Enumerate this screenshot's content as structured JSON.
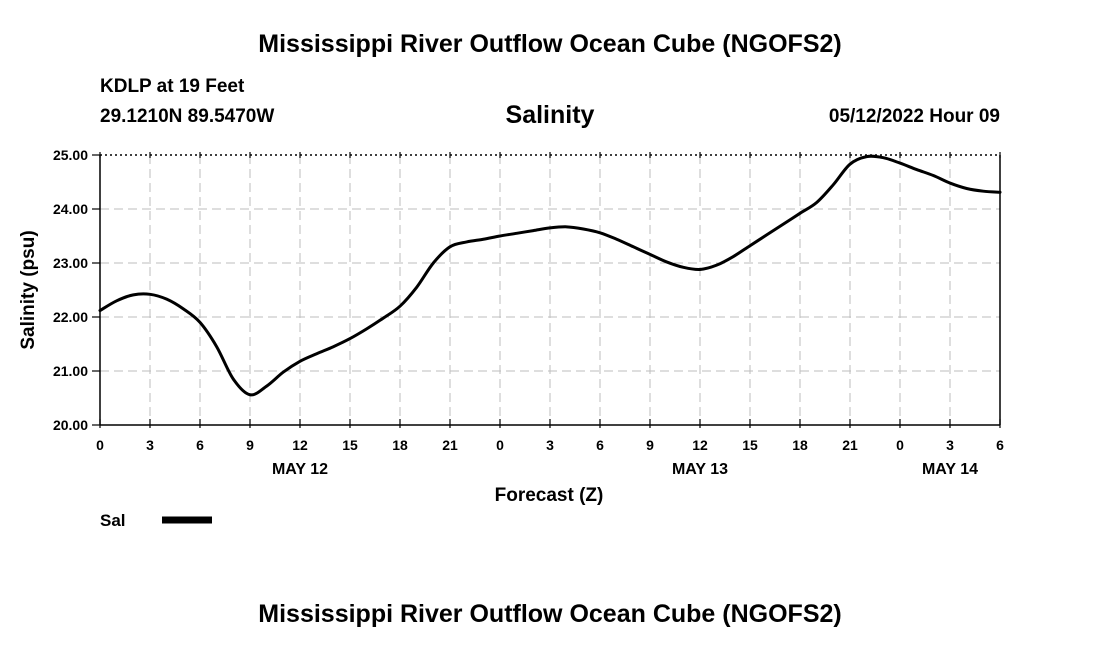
{
  "page": {
    "title_top": "Mississippi River Outflow Ocean Cube (NGOFS2)",
    "title_bottom": "Mississippi River Outflow Ocean Cube (NGOFS2)",
    "station_name": "KDLP at 19 Feet",
    "station_coords": "29.1210N  89.5470W",
    "run_time": "05/12/2022 Hour 09"
  },
  "chart_data": {
    "type": "line",
    "title": "Salinity",
    "xlabel": "Forecast (Z)",
    "ylabel": "Salinity (psu)",
    "xlim": [
      0,
      54
    ],
    "ylim": [
      20,
      25
    ],
    "yticks": [
      20,
      21,
      22,
      23,
      24,
      25
    ],
    "ytick_labels": [
      "20.00",
      "21.00",
      "22.00",
      "23.00",
      "24.00",
      "25.00"
    ],
    "xticks": [
      0,
      3,
      6,
      9,
      12,
      15,
      18,
      21,
      24,
      27,
      30,
      33,
      36,
      39,
      42,
      45,
      48,
      51,
      54
    ],
    "xtick_labels": [
      "0",
      "3",
      "6",
      "9",
      "12",
      "15",
      "18",
      "21",
      "0",
      "3",
      "6",
      "9",
      "12",
      "15",
      "18",
      "21",
      "0",
      "3",
      "6"
    ],
    "date_labels": [
      {
        "x": 12,
        "label": "MAY 12"
      },
      {
        "x": 36,
        "label": "MAY 13"
      },
      {
        "x": 51,
        "label": "MAY 14"
      }
    ],
    "grid": true,
    "legend": {
      "position": "bottom-left",
      "label": "Sal"
    },
    "series": [
      {
        "name": "Sal",
        "color": "#000000",
        "x": [
          0,
          1,
          2,
          3,
          4,
          5,
          6,
          7,
          8,
          9,
          10,
          11,
          12,
          13,
          14,
          15,
          16,
          17,
          18,
          19,
          20,
          21,
          22,
          23,
          24,
          25,
          26,
          27,
          28,
          29,
          30,
          31,
          32,
          33,
          34,
          35,
          36,
          37,
          38,
          39,
          40,
          41,
          42,
          43,
          44,
          45,
          46,
          47,
          48,
          49,
          50,
          51,
          52,
          53,
          54
        ],
        "y": [
          22.12,
          22.3,
          22.41,
          22.42,
          22.33,
          22.15,
          21.9,
          21.45,
          20.85,
          20.56,
          20.72,
          20.98,
          21.18,
          21.32,
          21.45,
          21.6,
          21.78,
          21.98,
          22.2,
          22.55,
          23.0,
          23.3,
          23.39,
          23.44,
          23.5,
          23.55,
          23.6,
          23.65,
          23.67,
          23.63,
          23.56,
          23.44,
          23.3,
          23.16,
          23.02,
          22.92,
          22.88,
          22.96,
          23.12,
          23.32,
          23.52,
          23.72,
          23.92,
          24.12,
          24.45,
          24.83,
          24.97,
          24.95,
          24.85,
          24.73,
          24.62,
          24.48,
          24.38,
          24.33,
          24.31
        ]
      }
    ]
  }
}
